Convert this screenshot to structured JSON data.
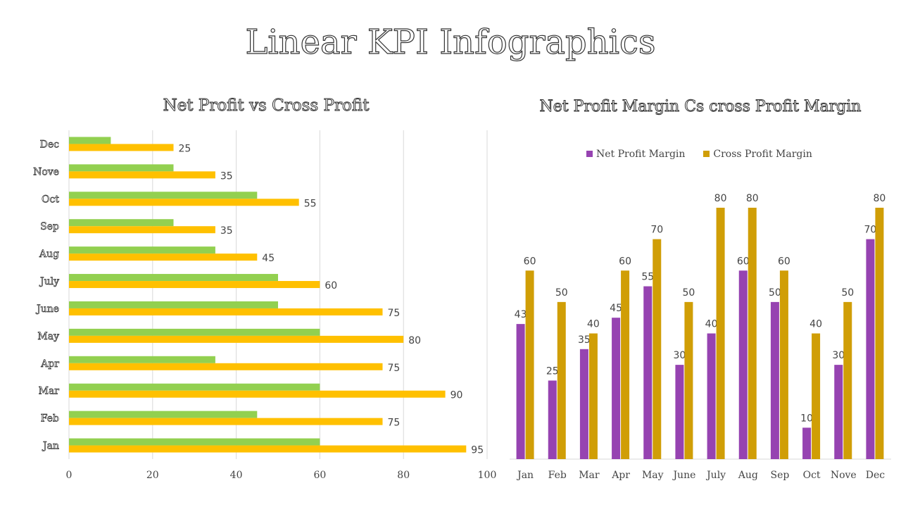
{
  "title": "Linear KPI Infographics",
  "chart_data": [
    {
      "type": "bar",
      "orientation": "horizontal",
      "title": "Net Profit vs Cross Profit",
      "categories": [
        "Jan",
        "Feb",
        "Mar",
        "Apr",
        "May",
        "June",
        "July",
        "Aug",
        "Sep",
        "Oct",
        "Nove",
        "Dec"
      ],
      "series": [
        {
          "values": [
            60,
            45,
            60,
            35,
            60,
            50,
            50,
            35,
            25,
            45,
            25,
            10
          ],
          "color": "#92D050"
        },
        {
          "values": [
            95,
            75,
            90,
            75,
            80,
            75,
            60,
            45,
            35,
            55,
            35,
            25
          ],
          "color": "#FFC000",
          "data_labels": true
        }
      ],
      "xlim": [
        0,
        100
      ],
      "xticks": [
        0,
        20,
        40,
        60,
        80,
        100
      ],
      "grid": "vertical"
    },
    {
      "type": "bar",
      "title": "Net Profit Margin Cs cross Profit Margin",
      "categories": [
        "Jan",
        "Feb",
        "Mar",
        "Apr",
        "May",
        "June",
        "July",
        "Aug",
        "Sep",
        "Oct",
        "Nove",
        "Dec"
      ],
      "series": [
        {
          "name": "Net Profit Margin",
          "values": [
            43,
            25,
            35,
            45,
            55,
            30,
            40,
            60,
            50,
            10,
            30,
            70
          ],
          "color": "#9643B1"
        },
        {
          "name": "Cross Profit Margin",
          "values": [
            60,
            50,
            40,
            60,
            70,
            50,
            80,
            80,
            60,
            40,
            50,
            80
          ],
          "color": "#D09E06"
        }
      ],
      "legend": "top",
      "ylim": [
        0,
        80
      ]
    }
  ]
}
